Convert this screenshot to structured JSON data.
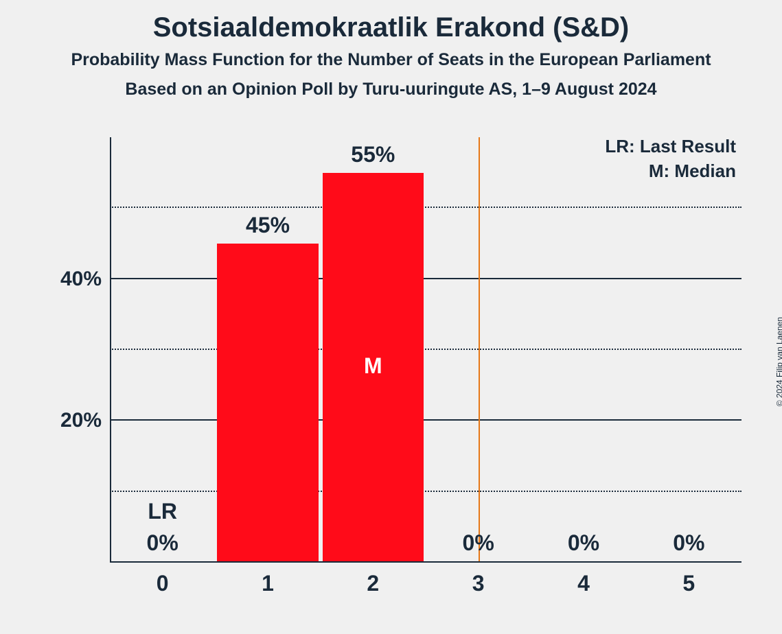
{
  "title": "Sotsiaaldemokraatlik Erakond (S&D)",
  "subtitle": "Probability Mass Function for the Number of Seats in the European Parliament",
  "subtitle2": "Based on an Opinion Poll by Turu-uuringute AS, 1–9 August 2024",
  "copyright": "© 2024 Filip van Laenen",
  "legend": {
    "lr": "LR: Last Result",
    "m": "M: Median"
  },
  "chart": {
    "type": "bar",
    "background_color": "#f0f0f0",
    "bar_color": "#ff0b19",
    "text_color": "#1a2a3a",
    "axis_color": "#1a2a3a",
    "grid_color": "#1a2a3a",
    "lr_line_color": "#e67817",
    "categories": [
      "0",
      "1",
      "2",
      "3",
      "4",
      "5"
    ],
    "values": [
      0,
      45,
      55,
      0,
      0,
      0
    ],
    "value_labels": [
      "0%",
      "45%",
      "55%",
      "0%",
      "0%",
      "0%"
    ],
    "lr_index": 0,
    "lr_label": "LR",
    "median_index": 2,
    "median_label": "M",
    "lr_line_position": 3.5,
    "ylim": [
      0,
      60
    ],
    "y_major_ticks": [
      20,
      40
    ],
    "y_major_labels": [
      "20%",
      "40%"
    ],
    "y_minor_ticks": [
      10,
      30,
      50
    ],
    "title_fontsize": 40,
    "subtitle_fontsize": 25,
    "label_fontsize": 32,
    "tick_fontsize": 30,
    "legend_fontsize": 26,
    "bar_width_ratio": 0.96
  }
}
